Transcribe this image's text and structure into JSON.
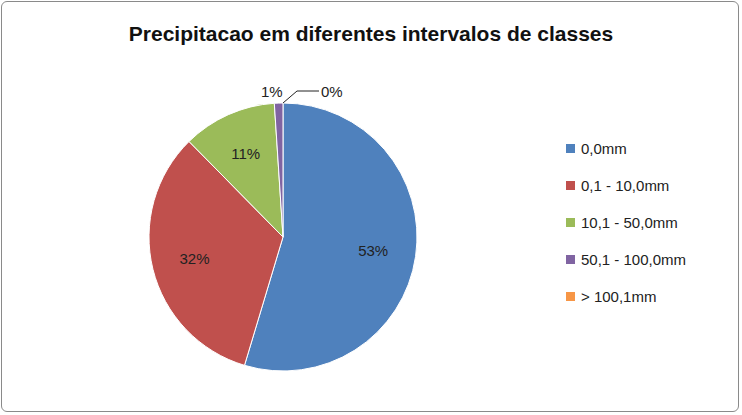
{
  "chart_data": {
    "type": "pie",
    "title": "Precipitacao em diferentes intervalos de classes",
    "categories": [
      "0,0mm",
      "0,1 - 10,0mm",
      "10,1 - 50,0mm",
      "50,1 - 100,0mm",
      "> 100,1mm"
    ],
    "values": [
      53,
      32,
      11,
      1,
      0
    ],
    "value_labels": [
      "53%",
      "32%",
      "11%",
      "1%",
      "0%"
    ],
    "colors": [
      "#4f81bd",
      "#c0504d",
      "#9bbb59",
      "#8064a2",
      "#f79646"
    ],
    "data_labels": true,
    "legend": "right"
  }
}
